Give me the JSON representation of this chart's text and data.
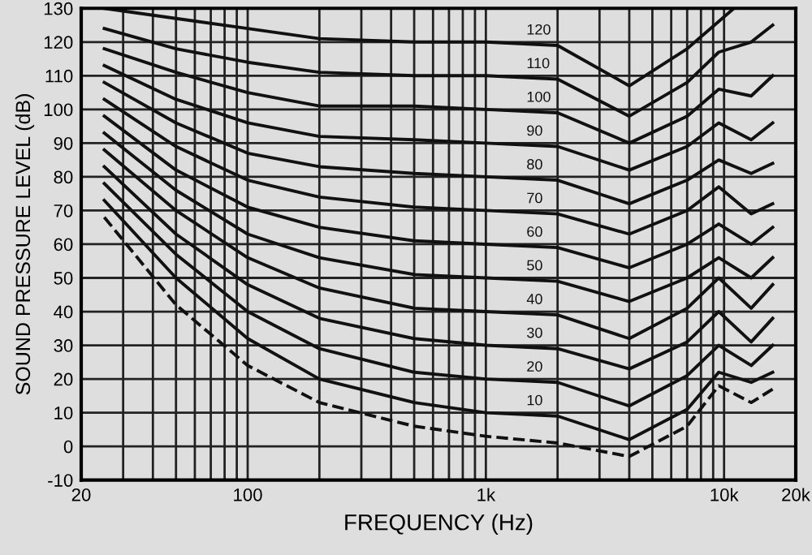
{
  "chart_data": {
    "type": "line",
    "xlabel": "FREQUENCY (Hz)",
    "ylabel": "SOUND PRESSURE LEVEL (dB)",
    "log": "x",
    "xlim": [
      20,
      20000
    ],
    "xticks": [
      20,
      100,
      {
        "value": 1000,
        "label": "1k"
      },
      {
        "value": 10000,
        "label": "10k"
      },
      {
        "value": 20000,
        "label": "20k"
      }
    ],
    "ylim": [
      -10,
      130
    ],
    "yticks": [
      -10,
      0,
      10,
      20,
      30,
      40,
      50,
      60,
      70,
      80,
      90,
      100,
      110,
      120,
      130
    ],
    "grid": true,
    "legend": false,
    "marker": "none",
    "series": [
      {
        "name": "120",
        "color": "#111111",
        "line_style": "solid",
        "x": [
          25,
          50,
          100,
          200,
          500,
          1000,
          2000,
          4000,
          7000,
          11000
        ],
        "values": [
          130,
          127,
          124,
          121,
          120,
          120,
          119,
          107,
          118,
          130
        ]
      },
      {
        "name": "110",
        "color": "#111111",
        "line_style": "solid",
        "x": [
          25,
          50,
          100,
          200,
          500,
          1000,
          2000,
          4000,
          7000,
          9500,
          13000,
          16000
        ],
        "values": [
          124,
          118,
          114,
          111,
          110,
          110,
          109,
          98,
          108,
          117,
          120,
          125
        ]
      },
      {
        "name": "100",
        "color": "#111111",
        "line_style": "solid",
        "x": [
          25,
          50,
          100,
          200,
          500,
          1000,
          2000,
          4000,
          7000,
          9500,
          13000,
          16000
        ],
        "values": [
          118,
          111,
          105,
          101,
          101,
          100,
          99,
          90,
          98,
          106,
          104,
          110
        ]
      },
      {
        "name": "90",
        "color": "#111111",
        "line_style": "solid",
        "x": [
          25,
          50,
          100,
          200,
          500,
          1000,
          2000,
          4000,
          7000,
          9500,
          13000,
          16000
        ],
        "values": [
          113,
          103,
          96,
          92,
          91,
          90,
          89,
          82,
          89,
          96,
          91,
          96
        ]
      },
      {
        "name": "80",
        "color": "#111111",
        "line_style": "solid",
        "x": [
          25,
          50,
          100,
          200,
          500,
          1000,
          2000,
          4000,
          7000,
          9500,
          13000,
          16000
        ],
        "values": [
          108,
          96,
          87,
          83,
          81,
          80,
          79,
          72,
          79,
          85,
          81,
          84
        ]
      },
      {
        "name": "70",
        "color": "#111111",
        "line_style": "solid",
        "x": [
          25,
          50,
          100,
          200,
          500,
          1000,
          2000,
          4000,
          7000,
          9500,
          13000,
          16000
        ],
        "values": [
          103,
          89,
          79,
          74,
          71,
          70,
          69,
          63,
          70,
          77,
          69,
          72
        ]
      },
      {
        "name": "60",
        "color": "#111111",
        "line_style": "solid",
        "x": [
          25,
          50,
          100,
          200,
          500,
          1000,
          2000,
          4000,
          7000,
          9500,
          13000,
          16000
        ],
        "values": [
          98,
          82,
          71,
          65,
          61,
          60,
          59,
          53,
          60,
          66,
          60,
          65
        ]
      },
      {
        "name": "50",
        "color": "#111111",
        "line_style": "solid",
        "x": [
          25,
          50,
          100,
          200,
          500,
          1000,
          2000,
          4000,
          7000,
          9500,
          13000,
          16000
        ],
        "values": [
          93,
          76,
          63,
          56,
          51,
          50,
          49,
          43,
          50,
          56,
          50,
          56
        ]
      },
      {
        "name": "40",
        "color": "#111111",
        "line_style": "solid",
        "x": [
          25,
          50,
          100,
          200,
          500,
          1000,
          2000,
          4000,
          7000,
          9500,
          13000,
          16000
        ],
        "values": [
          88,
          70,
          56,
          47,
          41,
          40,
          39,
          32,
          41,
          50,
          41,
          48
        ]
      },
      {
        "name": "30",
        "color": "#111111",
        "line_style": "solid",
        "x": [
          25,
          50,
          100,
          200,
          500,
          1000,
          2000,
          4000,
          7000,
          9500,
          13000,
          16000
        ],
        "values": [
          83,
          63,
          48,
          38,
          32,
          30,
          29,
          23,
          31,
          40,
          31,
          38
        ]
      },
      {
        "name": "20",
        "color": "#111111",
        "line_style": "solid",
        "x": [
          25,
          50,
          100,
          200,
          500,
          1000,
          2000,
          4000,
          7000,
          9500,
          13000,
          16000
        ],
        "values": [
          78,
          57,
          40,
          29,
          22,
          20,
          19,
          12,
          21,
          30,
          24,
          30
        ]
      },
      {
        "name": "10",
        "color": "#111111",
        "line_style": "solid",
        "x": [
          25,
          50,
          100,
          200,
          500,
          1000,
          2000,
          4000,
          7000,
          9500,
          13000,
          16000
        ],
        "values": [
          73,
          50,
          32,
          20,
          13,
          10,
          9,
          2,
          11,
          22,
          19,
          22
        ]
      },
      {
        "color": "#111111",
        "line_style": "dashed",
        "x": [
          25,
          50,
          100,
          200,
          500,
          1000,
          2000,
          4000,
          7000,
          9500,
          13000,
          16000
        ],
        "values": [
          68,
          42,
          24,
          13,
          6,
          3,
          1,
          -3,
          6,
          18,
          13,
          17
        ]
      }
    ]
  }
}
